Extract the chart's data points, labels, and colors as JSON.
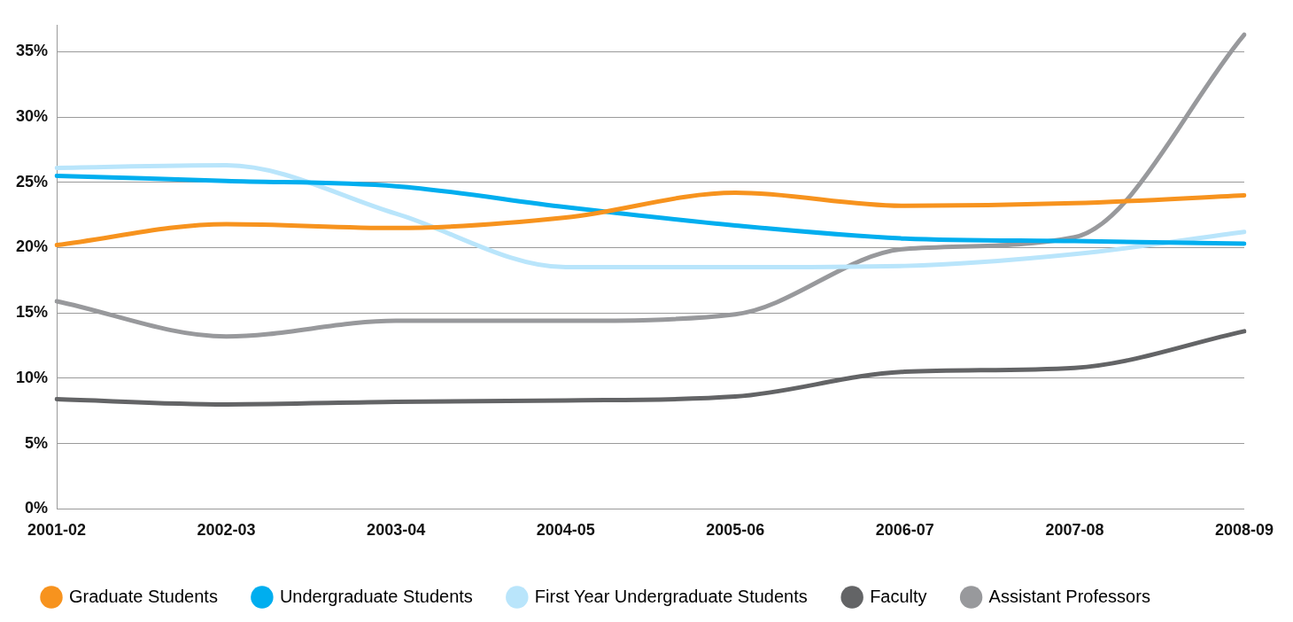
{
  "chart_data": {
    "type": "line",
    "categories": [
      "2001-02",
      "2002-03",
      "2003-04",
      "2004-05",
      "2005-06",
      "2006-07",
      "2007-08",
      "2008-09"
    ],
    "series": [
      {
        "name": "Graduate Students",
        "color": "#f7931e",
        "values": [
          20.2,
          21.8,
          21.5,
          22.3,
          24.2,
          23.2,
          23.4,
          24.0
        ]
      },
      {
        "name": "Undergraduate Students",
        "color": "#00aeef",
        "values": [
          25.5,
          25.1,
          24.7,
          23.1,
          21.7,
          20.7,
          20.5,
          20.3
        ]
      },
      {
        "name": "First Year Undergraduate Students",
        "color": "#b9e5fb",
        "values": [
          26.1,
          26.3,
          22.6,
          18.5,
          18.5,
          18.6,
          19.5,
          21.2
        ]
      },
      {
        "name": "Faculty",
        "color": "#636466",
        "values": [
          8.4,
          8.0,
          8.2,
          8.3,
          8.6,
          10.5,
          10.8,
          13.6
        ]
      },
      {
        "name": "Assistant Professors",
        "color": "#98999c",
        "values": [
          15.9,
          13.2,
          14.4,
          14.4,
          14.9,
          19.9,
          20.8,
          36.3
        ]
      }
    ],
    "ylim": [
      0,
      37
    ],
    "yticks": [
      {
        "value": 0,
        "label": "0%"
      },
      {
        "value": 5,
        "label": "5%"
      },
      {
        "value": 10,
        "label": "10%"
      },
      {
        "value": 15,
        "label": "15%"
      },
      {
        "value": 20,
        "label": "20%"
      },
      {
        "value": 25,
        "label": "25%"
      },
      {
        "value": 30,
        "label": "30%"
      },
      {
        "value": 35,
        "label": "35%"
      }
    ],
    "grid": "y",
    "legend": "bottom",
    "marker": "none",
    "line_style": "solid"
  }
}
